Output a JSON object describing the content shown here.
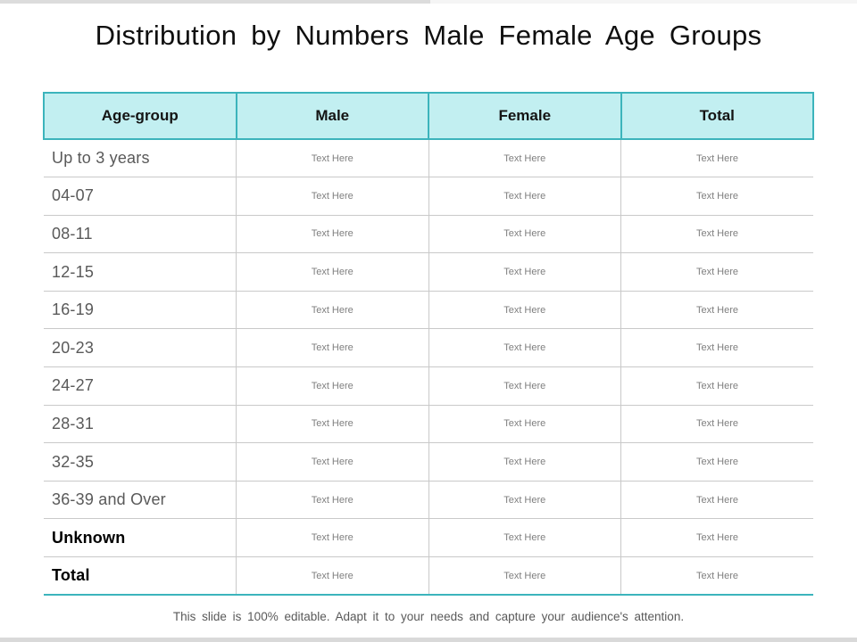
{
  "title": "Distribution by Numbers Male Female Age Groups",
  "footer": "This slide is 100% editable. Adapt it to your needs and capture your audience's attention.",
  "colors": {
    "accent_teal": "#3cb4bc",
    "header_background": "#c2eff1",
    "row_line_gray": "#c9c9c9",
    "label_gray": "#595959",
    "cell_gray": "#7f7f7f"
  },
  "table": {
    "columns": [
      "Age-group",
      "Male",
      "Female",
      "Total"
    ],
    "rows": [
      {
        "label": "Up to 3 years",
        "emphasis": false,
        "cells": [
          "Text Here",
          "Text Here",
          "Text Here"
        ]
      },
      {
        "label": "04-07",
        "emphasis": false,
        "cells": [
          "Text Here",
          "Text Here",
          "Text Here"
        ]
      },
      {
        "label": "08-11",
        "emphasis": false,
        "cells": [
          "Text Here",
          "Text Here",
          "Text Here"
        ]
      },
      {
        "label": "12-15",
        "emphasis": false,
        "cells": [
          "Text Here",
          "Text Here",
          "Text Here"
        ]
      },
      {
        "label": "16-19",
        "emphasis": false,
        "cells": [
          "Text Here",
          "Text Here",
          "Text Here"
        ]
      },
      {
        "label": "20-23",
        "emphasis": false,
        "cells": [
          "Text Here",
          "Text Here",
          "Text Here"
        ]
      },
      {
        "label": "24-27",
        "emphasis": false,
        "cells": [
          "Text Here",
          "Text Here",
          "Text Here"
        ]
      },
      {
        "label": "28-31",
        "emphasis": false,
        "cells": [
          "Text Here",
          "Text Here",
          "Text Here"
        ]
      },
      {
        "label": "32-35",
        "emphasis": false,
        "cells": [
          "Text Here",
          "Text Here",
          "Text Here"
        ]
      },
      {
        "label": "36-39 and Over",
        "emphasis": false,
        "cells": [
          "Text Here",
          "Text Here",
          "Text Here"
        ]
      },
      {
        "label": "Unknown",
        "emphasis": true,
        "cells": [
          "Text Here",
          "Text Here",
          "Text Here"
        ]
      },
      {
        "label": "Total",
        "emphasis": true,
        "cells": [
          "Text Here",
          "Text Here",
          "Text Here"
        ]
      }
    ]
  }
}
